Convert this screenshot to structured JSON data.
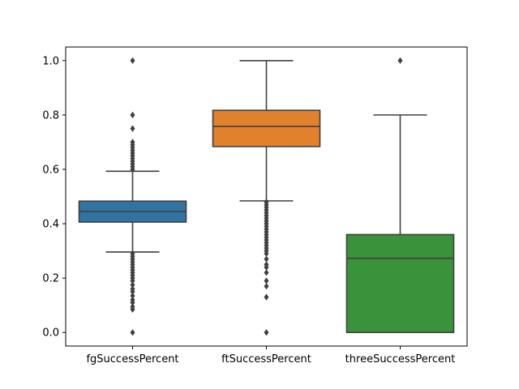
{
  "chart_data": {
    "type": "box",
    "title": "",
    "xlabel": "",
    "ylabel": "",
    "ylim": [
      -0.05,
      1.05
    ],
    "yticks": [
      "0.0",
      "0.2",
      "0.4",
      "0.6",
      "0.8",
      "1.0"
    ],
    "grid": false,
    "legend": "none",
    "categories": [
      "fgSuccessPercent",
      "ftSuccessPercent",
      "threeSuccessPercent"
    ],
    "boxes": [
      {
        "name": "fgSuccessPercent",
        "color": "#3274a1",
        "whisker_low": 0.296,
        "q1": 0.406,
        "median": 0.445,
        "q3": 0.483,
        "whisker_high": 0.593,
        "outliers": [
          0.0,
          0.085,
          0.095,
          0.11,
          0.12,
          0.135,
          0.15,
          0.16,
          0.175,
          0.19,
          0.2,
          0.21,
          0.22,
          0.23,
          0.24,
          0.25,
          0.26,
          0.27,
          0.28,
          0.29,
          0.6,
          0.61,
          0.62,
          0.63,
          0.64,
          0.65,
          0.66,
          0.67,
          0.68,
          0.69,
          0.7,
          0.75,
          0.8,
          1.0
        ]
      },
      {
        "name": "ftSuccessPercent",
        "color": "#e1812c",
        "whisker_low": 0.484,
        "q1": 0.684,
        "median": 0.758,
        "q3": 0.817,
        "whisker_high": 1.0,
        "outliers": [
          0.0,
          0.13,
          0.17,
          0.19,
          0.22,
          0.24,
          0.25,
          0.27,
          0.29,
          0.3,
          0.31,
          0.32,
          0.33,
          0.34,
          0.35,
          0.36,
          0.37,
          0.38,
          0.39,
          0.4,
          0.41,
          0.42,
          0.43,
          0.44,
          0.45,
          0.46,
          0.47,
          0.48
        ]
      },
      {
        "name": "threeSuccessPercent",
        "color": "#3a923a",
        "whisker_low": 0.0,
        "q1": 0.0,
        "median": 0.273,
        "q3": 0.36,
        "whisker_high": 0.8,
        "outliers": [
          1.0
        ]
      }
    ]
  }
}
